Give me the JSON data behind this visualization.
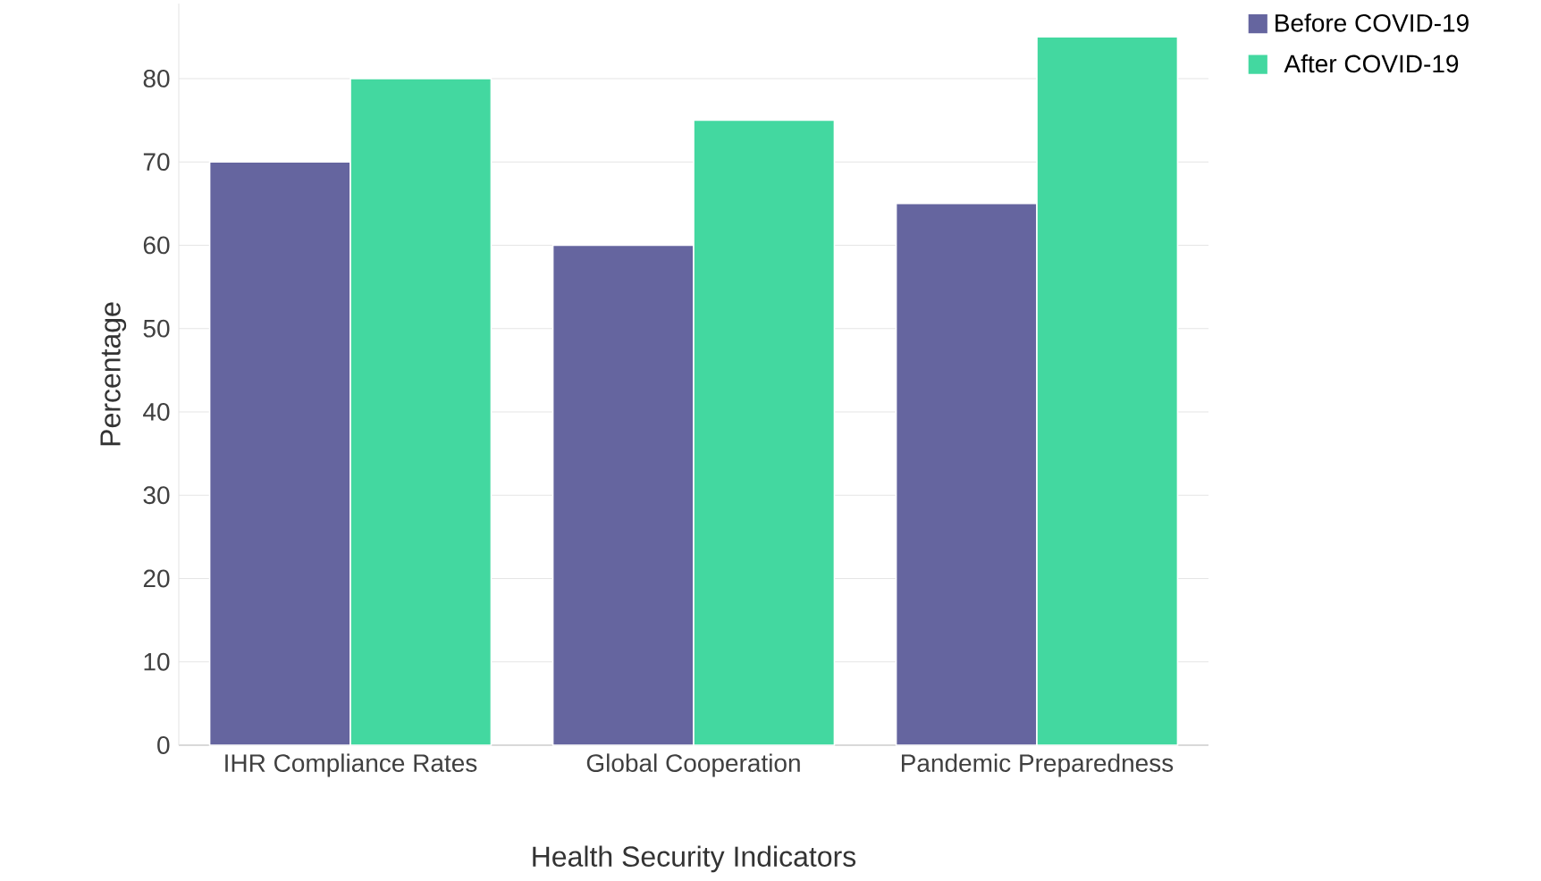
{
  "chart_data": {
    "type": "bar",
    "xlabel": "Health Security Indicators",
    "ylabel": "Percentage",
    "categories": [
      "IHR Compliance Rates",
      "Global Cooperation",
      "Pandemic Preparedness"
    ],
    "series": [
      {
        "name": "Before COVID-19",
        "color": "#65659f",
        "values": [
          70,
          60,
          65
        ]
      },
      {
        "name": "After COVID-19",
        "color": "#43d8a0",
        "values": [
          80,
          75,
          85
        ]
      }
    ],
    "ylim": [
      0,
      89
    ],
    "yticks": [
      0,
      10,
      20,
      30,
      40,
      50,
      60,
      70,
      80
    ],
    "grid": "y",
    "legend": "top right"
  }
}
